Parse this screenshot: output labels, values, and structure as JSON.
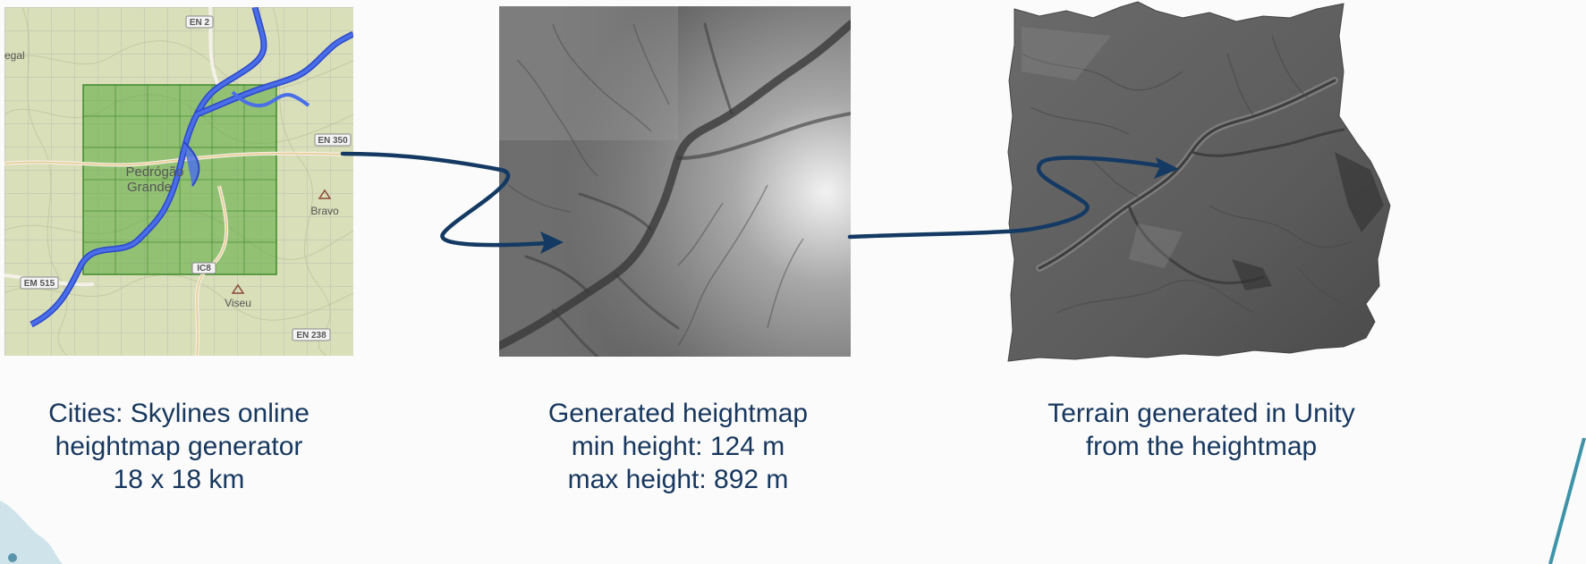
{
  "map": {
    "roads": [
      "EN 2",
      "EN 350",
      "EM 515",
      "IC8",
      "EN 238"
    ],
    "places": [
      "Pedrógão",
      "Grande",
      "Bravo",
      "Viseu",
      "egal"
    ]
  },
  "captions": {
    "map": [
      "Cities: Skylines online",
      "heightmap generator",
      "18 x 18 km"
    ],
    "heightmap": [
      "Generated heightmap",
      "min height: 124 m",
      "max height: 892 m"
    ],
    "terrain": [
      "Terrain generated in Unity",
      "from the heightmap"
    ]
  },
  "colors": {
    "caption": "#17375e",
    "arrow": "#143a63",
    "river": "#3f63e0",
    "selection": "#5aa83c",
    "map_base": "#d8ddb8",
    "terrain": "#5a5a5a"
  }
}
